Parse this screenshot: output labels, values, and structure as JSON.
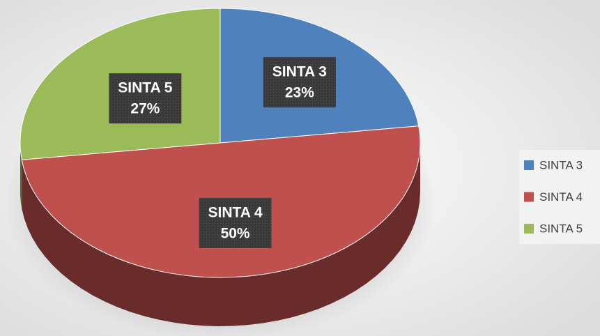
{
  "chart_data": {
    "type": "pie",
    "categories": [
      "SINTA 3",
      "SINTA 4",
      "SINTA 5"
    ],
    "values": [
      23,
      50,
      27
    ],
    "value_labels": [
      "23%",
      "50%",
      "27%"
    ],
    "colors": [
      "#4f81bd",
      "#c0504d",
      "#9bbb59"
    ],
    "legend": "right"
  }
}
